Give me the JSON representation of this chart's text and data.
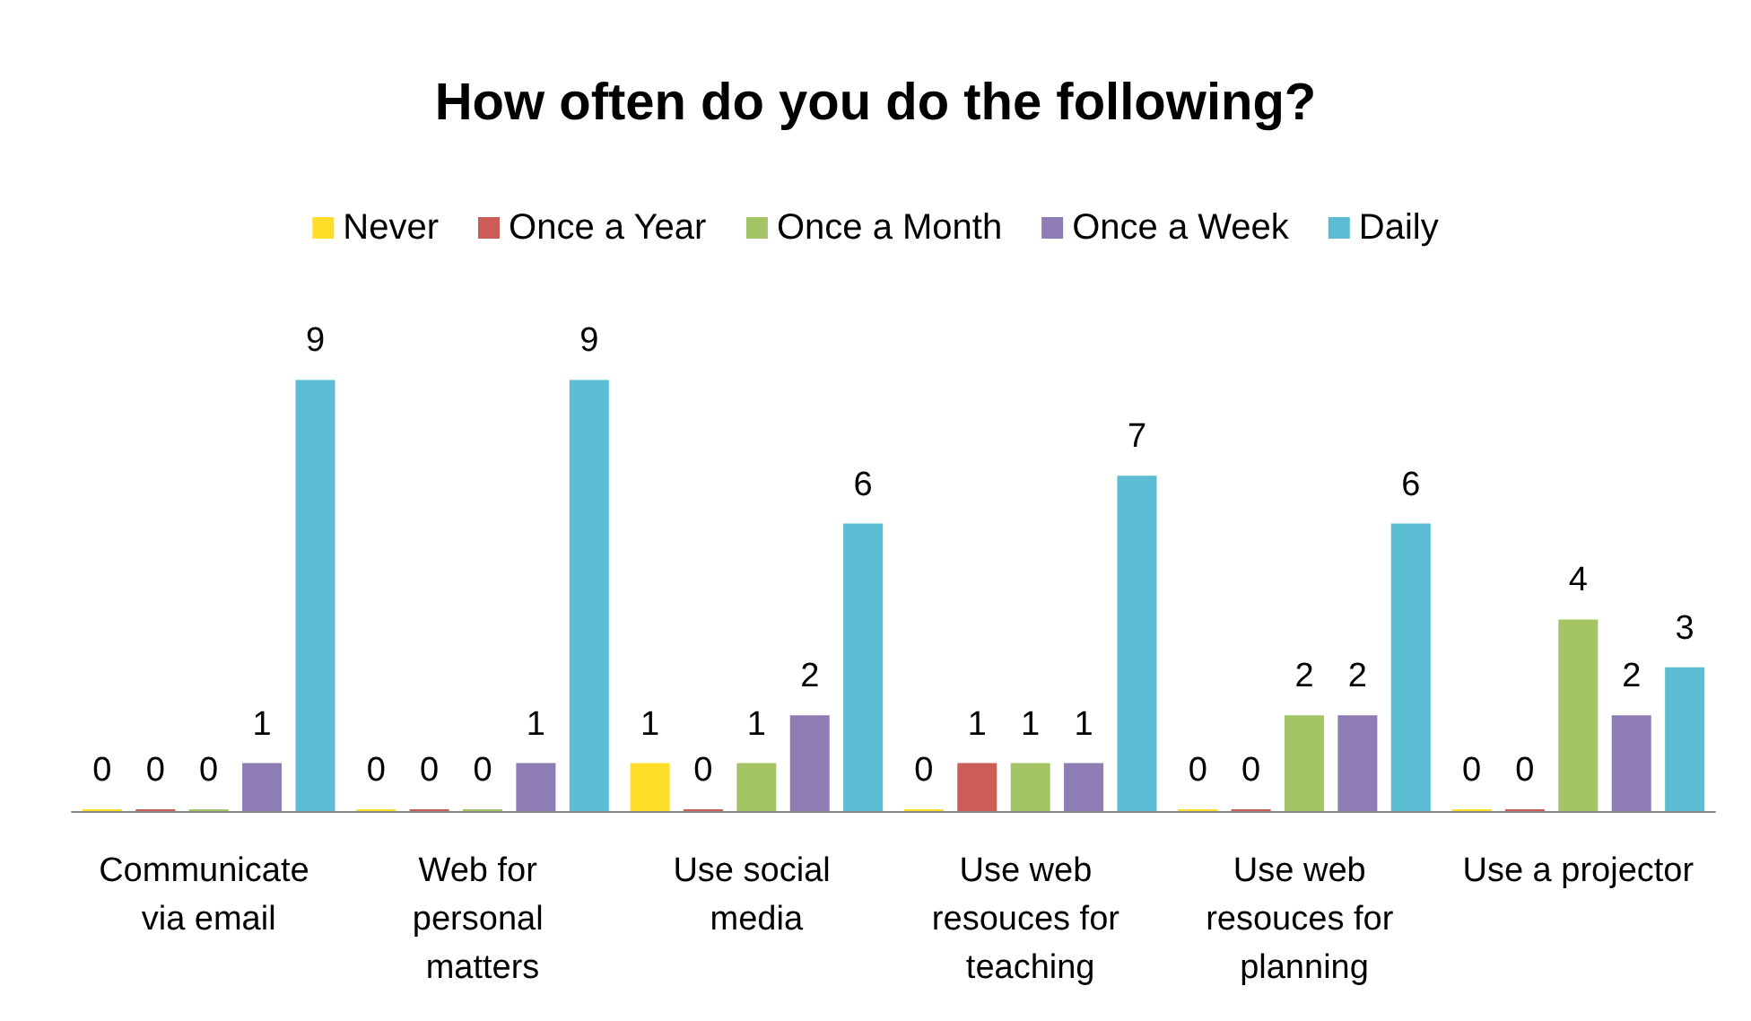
{
  "chart_data": {
    "type": "bar",
    "title": "How often do you do the following?",
    "categories": [
      "Communicate via email",
      "Web for personal matters",
      "Use social media",
      "Use web resouces for teaching",
      "Use web resouces for planning",
      "Use a projector"
    ],
    "series": [
      {
        "name": "Never",
        "color": "#ffde2a",
        "values": [
          0,
          0,
          1,
          0,
          0,
          0
        ]
      },
      {
        "name": "Once a Year",
        "color": "#cc5c58",
        "values": [
          0,
          0,
          0,
          1,
          0,
          0
        ]
      },
      {
        "name": "Once a Month",
        "color": "#a4c565",
        "values": [
          0,
          0,
          1,
          1,
          2,
          4
        ]
      },
      {
        "name": "Once a Week",
        "color": "#8e7cb5",
        "values": [
          1,
          1,
          2,
          1,
          2,
          2
        ]
      },
      {
        "name": "Daily",
        "color": "#5bbcd3",
        "values": [
          9,
          9,
          6,
          7,
          6,
          3
        ]
      }
    ],
    "data_labels": true,
    "legend": "top",
    "grid": false,
    "tick_labels": "x"
  }
}
